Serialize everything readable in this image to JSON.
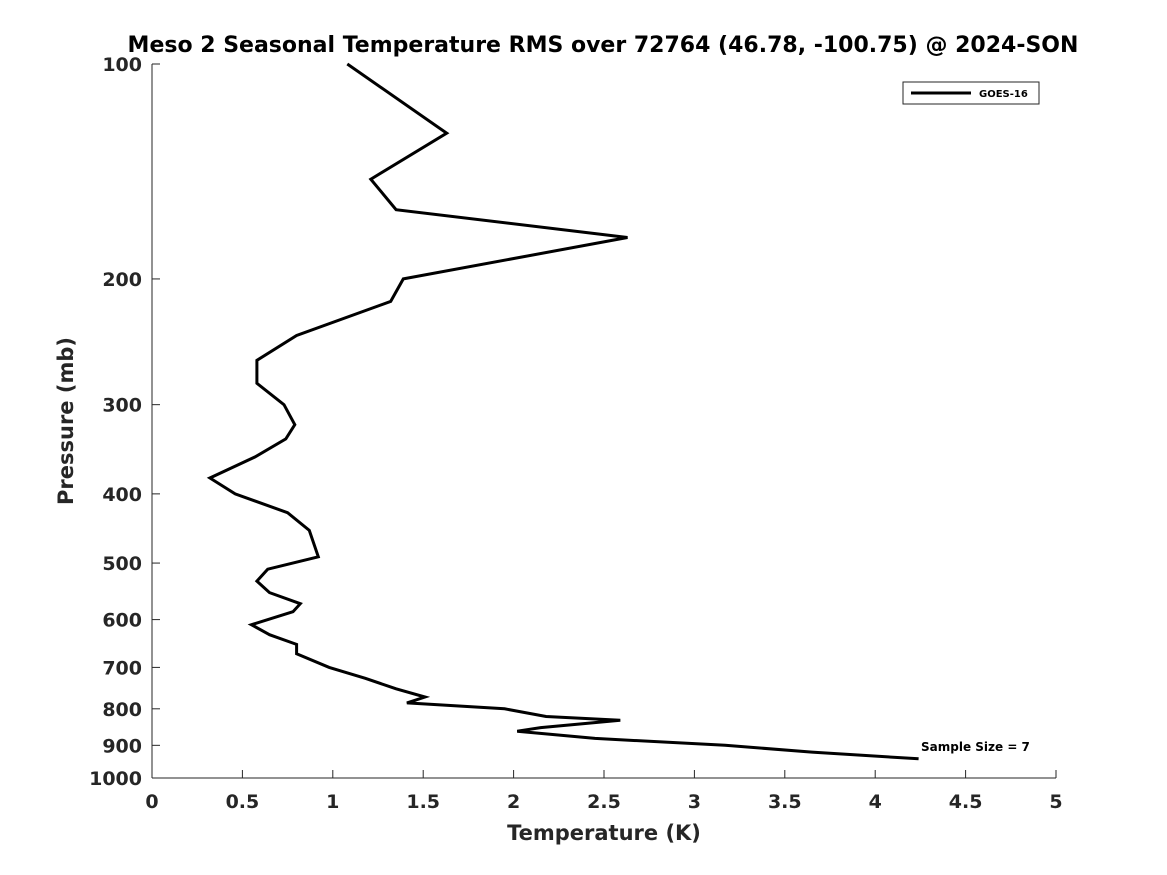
{
  "chart_data": {
    "type": "line",
    "title": "Meso 2 Seasonal Temperature RMS over 72764 (46.78, -100.75) @ 2024-SON",
    "xlabel": "Temperature (K)",
    "ylabel": "Pressure (mb)",
    "xlim": [
      0,
      5
    ],
    "ylim": [
      100,
      1000
    ],
    "yscale": "log",
    "yreversed": true,
    "xticks": [
      0,
      0.5,
      1,
      1.5,
      2,
      2.5,
      3,
      3.5,
      4,
      4.5,
      5
    ],
    "xtick_labels": [
      "0",
      "0.5",
      "1",
      "1.5",
      "2",
      "2.5",
      "3",
      "3.5",
      "4",
      "4.5",
      "5"
    ],
    "yticks": [
      100,
      200,
      300,
      400,
      500,
      600,
      700,
      800,
      900,
      1000
    ],
    "ytick_labels": [
      "100",
      "200",
      "300",
      "400",
      "500",
      "600",
      "700",
      "800",
      "900",
      "1000"
    ],
    "legend": {
      "location": "top-right",
      "entries": [
        "GOES-16"
      ]
    },
    "annotation": "Sample Size = 7",
    "series": [
      {
        "name": "GOES-16",
        "color": "#000000",
        "points": [
          [
            1.08,
            100
          ],
          [
            1.63,
            125
          ],
          [
            1.21,
            145
          ],
          [
            1.35,
            160
          ],
          [
            2.63,
            175
          ],
          [
            1.39,
            200
          ],
          [
            1.32,
            215
          ],
          [
            0.8,
            240
          ],
          [
            0.58,
            260
          ],
          [
            0.58,
            280
          ],
          [
            0.73,
            300
          ],
          [
            0.79,
            320
          ],
          [
            0.74,
            335
          ],
          [
            0.57,
            355
          ],
          [
            0.32,
            380
          ],
          [
            0.46,
            400
          ],
          [
            0.75,
            425
          ],
          [
            0.87,
            450
          ],
          [
            0.92,
            490
          ],
          [
            0.64,
            510
          ],
          [
            0.58,
            530
          ],
          [
            0.65,
            550
          ],
          [
            0.82,
            570
          ],
          [
            0.78,
            585
          ],
          [
            0.55,
            610
          ],
          [
            0.65,
            630
          ],
          [
            0.8,
            650
          ],
          [
            0.8,
            670
          ],
          [
            0.98,
            700
          ],
          [
            1.18,
            725
          ],
          [
            1.35,
            750
          ],
          [
            1.51,
            770
          ],
          [
            1.41,
            785
          ],
          [
            1.95,
            800
          ],
          [
            2.18,
            820
          ],
          [
            2.59,
            830
          ],
          [
            2.15,
            850
          ],
          [
            2.02,
            860
          ],
          [
            2.45,
            880
          ],
          [
            3.17,
            900
          ],
          [
            3.65,
            920
          ],
          [
            4.24,
            940
          ]
        ]
      }
    ]
  }
}
